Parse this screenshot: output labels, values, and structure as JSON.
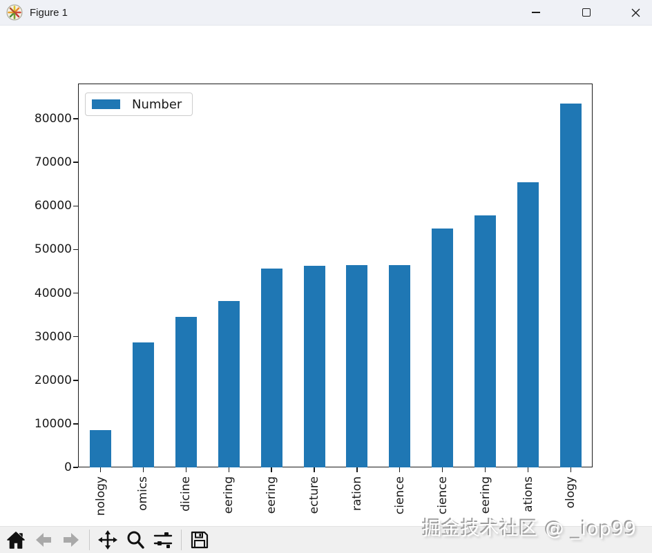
{
  "titlebar": {
    "title": "Figure 1",
    "icons": {
      "app": "matplotlib-logo-icon",
      "minimize": "minimize-icon",
      "maximize": "maximize-icon",
      "close": "close-icon"
    }
  },
  "toolbar": {
    "buttons": [
      {
        "name": "home",
        "icon": "home-icon",
        "enabled": true
      },
      {
        "name": "back",
        "icon": "back-arrow-icon",
        "enabled": false
      },
      {
        "name": "forward",
        "icon": "forward-arrow-icon",
        "enabled": false
      },
      {
        "name": "pan",
        "icon": "pan-arrows-icon",
        "enabled": true
      },
      {
        "name": "zoom",
        "icon": "zoom-magnifier-icon",
        "enabled": true
      },
      {
        "name": "configure-subplots",
        "icon": "sliders-icon",
        "enabled": true
      },
      {
        "name": "save",
        "icon": "save-floppy-icon",
        "enabled": true
      }
    ]
  },
  "watermark": {
    "text": "掘金技术社区 @ _iop99"
  },
  "chart_data": {
    "type": "bar",
    "title": "",
    "legend_label": "Number",
    "legend_position": "upper left",
    "bar_color": "#1f77b4",
    "categories_visible_fragments": [
      "nology",
      "omics",
      "dicine",
      "eering",
      "eering",
      "ecture",
      "ration",
      "cience",
      "cience",
      "eering",
      "ations",
      "ology"
    ],
    "values": [
      8500,
      28700,
      34500,
      38100,
      45700,
      46200,
      46400,
      46400,
      54800,
      57900,
      65400,
      83500
    ],
    "yticks": [
      0,
      10000,
      20000,
      30000,
      40000,
      50000,
      60000,
      70000,
      80000
    ],
    "ylim": [
      0,
      88000
    ],
    "grid": false,
    "x_tick_rotation": 90,
    "xlabel": "",
    "ylabel": ""
  }
}
